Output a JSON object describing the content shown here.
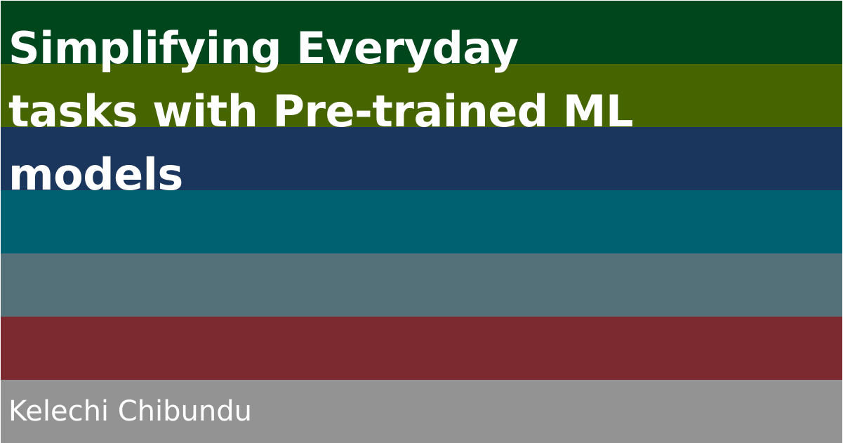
{
  "title_lines": [
    "Simplifying Everyday",
    "tasks with Pre-trained ML",
    "models"
  ],
  "author": "Kelechi Chibundu",
  "stripe_colors": [
    "#00461d",
    "#466400",
    "#1b365c",
    "#006270",
    "#547079",
    "#7c2a30",
    "#939393"
  ]
}
